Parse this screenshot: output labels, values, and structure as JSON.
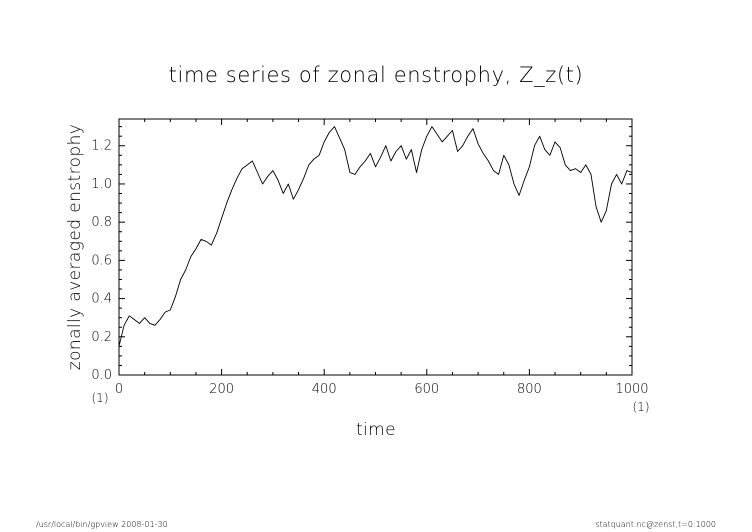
{
  "footer": {
    "left": "/usr/local/bin/gpview   2008-01-30",
    "right": "statquant.nc@zenst,t=0:1000"
  },
  "chart_data": {
    "type": "line",
    "title": "time series of zonal enstrophy, Z_z(t)",
    "xlabel": "time",
    "ylabel": "zonally averaged enstrophy",
    "x_unit_left": "(1)",
    "x_unit_right": "(1)",
    "xlim": [
      0,
      1000
    ],
    "ylim": [
      0.0,
      1.34
    ],
    "x_ticks": [
      0,
      200,
      400,
      600,
      800,
      1000
    ],
    "y_ticks": [
      0.0,
      0.2,
      0.4,
      0.6,
      0.8,
      1.0,
      1.2
    ],
    "x_tick_labels": [
      "0",
      "200",
      "400",
      "600",
      "800",
      "1000"
    ],
    "y_tick_labels": [
      "0.0",
      "0.2",
      "0.4",
      "0.6",
      "0.8",
      "1.0",
      "1.2"
    ],
    "grid": false,
    "series": [
      {
        "color": "#000000",
        "x": [
          0,
          10,
          20,
          30,
          40,
          50,
          60,
          70,
          80,
          90,
          100,
          110,
          120,
          130,
          140,
          150,
          160,
          170,
          180,
          190,
          200,
          210,
          220,
          230,
          240,
          250,
          260,
          270,
          280,
          290,
          300,
          310,
          320,
          330,
          340,
          350,
          360,
          370,
          380,
          390,
          400,
          410,
          420,
          430,
          440,
          450,
          460,
          470,
          480,
          490,
          500,
          510,
          520,
          530,
          540,
          550,
          560,
          570,
          580,
          590,
          600,
          610,
          620,
          630,
          640,
          650,
          660,
          670,
          680,
          690,
          700,
          710,
          720,
          730,
          740,
          750,
          760,
          770,
          780,
          790,
          800,
          810,
          820,
          830,
          840,
          850,
          860,
          870,
          880,
          890,
          900,
          910,
          920,
          930,
          940,
          950,
          960,
          970,
          980,
          990,
          1000
        ],
        "y": [
          0.15,
          0.26,
          0.31,
          0.29,
          0.27,
          0.3,
          0.27,
          0.26,
          0.29,
          0.33,
          0.34,
          0.41,
          0.5,
          0.55,
          0.62,
          0.66,
          0.71,
          0.7,
          0.68,
          0.74,
          0.82,
          0.9,
          0.97,
          1.03,
          1.08,
          1.1,
          1.12,
          1.06,
          1.0,
          1.04,
          1.07,
          1.02,
          0.95,
          1.0,
          0.92,
          0.97,
          1.03,
          1.1,
          1.13,
          1.15,
          1.22,
          1.27,
          1.3,
          1.24,
          1.18,
          1.06,
          1.05,
          1.09,
          1.12,
          1.16,
          1.09,
          1.14,
          1.2,
          1.12,
          1.17,
          1.2,
          1.13,
          1.18,
          1.06,
          1.18,
          1.25,
          1.3,
          1.26,
          1.22,
          1.25,
          1.28,
          1.17,
          1.2,
          1.25,
          1.29,
          1.21,
          1.16,
          1.12,
          1.07,
          1.05,
          1.15,
          1.1,
          1.0,
          0.94,
          1.02,
          1.09,
          1.2,
          1.25,
          1.18,
          1.15,
          1.22,
          1.19,
          1.1,
          1.07,
          1.08,
          1.06,
          1.1,
          1.05,
          0.88,
          0.8,
          0.86,
          1.0,
          1.05,
          1.0,
          1.07,
          1.06
        ]
      }
    ]
  }
}
